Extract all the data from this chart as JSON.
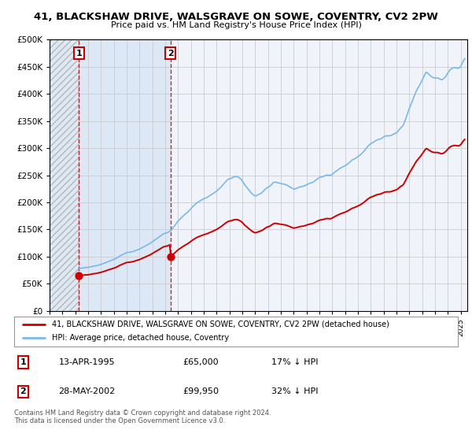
{
  "title": "41, BLACKSHAW DRIVE, WALSGRAVE ON SOWE, COVENTRY, CV2 2PW",
  "subtitle": "Price paid vs. HM Land Registry's House Price Index (HPI)",
  "legend_line1": "41, BLACKSHAW DRIVE, WALSGRAVE ON SOWE, COVENTRY, CV2 2PW (detached house)",
  "legend_line2": "HPI: Average price, detached house, Coventry",
  "footnote": "Contains HM Land Registry data © Crown copyright and database right 2024.\nThis data is licensed under the Open Government Licence v3.0.",
  "sale1_date": "13-APR-1995",
  "sale1_price": "£65,000",
  "sale1_hpi": "17% ↓ HPI",
  "sale1_year": 1995.28,
  "sale1_value": 65000,
  "sale2_date": "28-MAY-2002",
  "sale2_price": "£99,950",
  "sale2_hpi": "32% ↓ HPI",
  "sale2_year": 2002.41,
  "sale2_value": 99950,
  "hpi_color": "#7ab8e8",
  "price_color": "#cc0000",
  "background_color": "#ffffff",
  "plot_bg_color": "#f0f4fa",
  "grid_color": "#cccccc",
  "shade_color": "#dce8f5",
  "ylim": [
    0,
    500000
  ],
  "yticks": [
    0,
    50000,
    100000,
    150000,
    200000,
    250000,
    300000,
    350000,
    400000,
    450000,
    500000
  ],
  "xlim_start": 1993,
  "xlim_end": 2025.5
}
